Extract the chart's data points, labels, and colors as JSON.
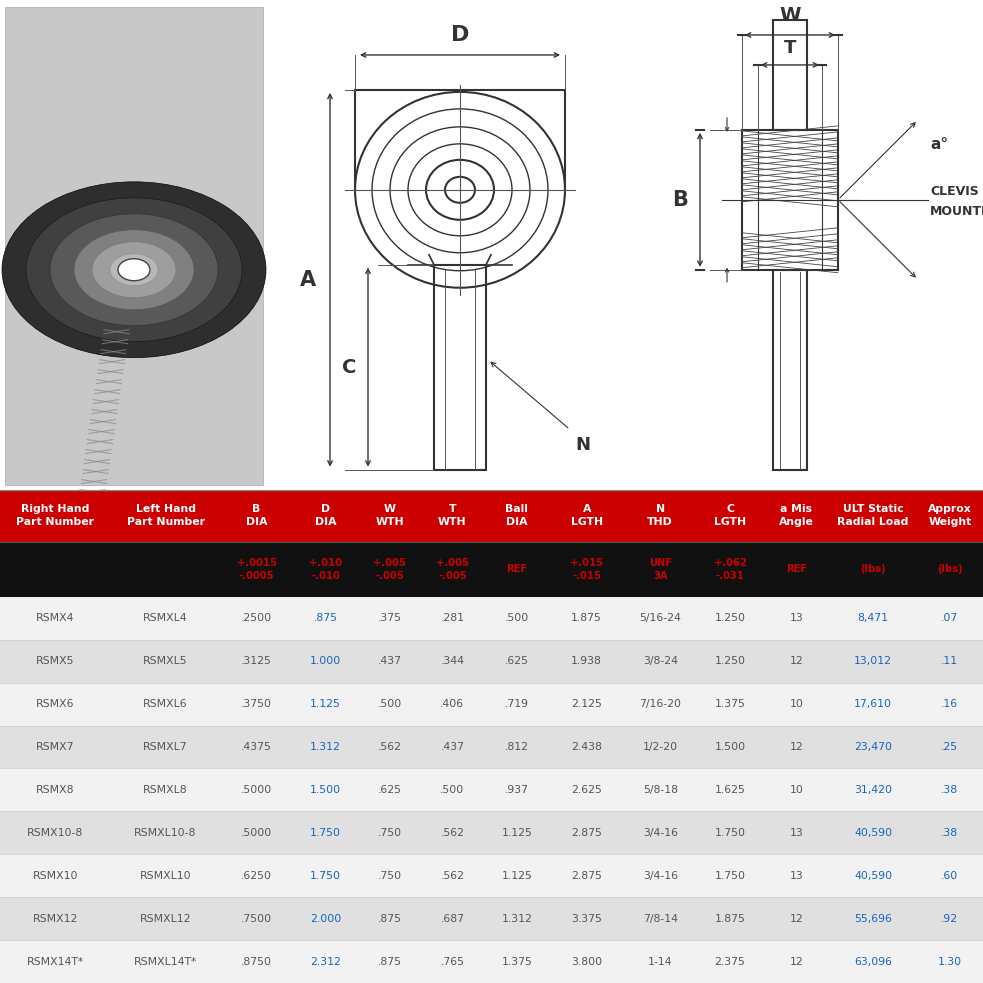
{
  "header_cols": [
    "Right Hand\nPart Number",
    "Left Hand\nPart Number",
    "B\nDIA",
    "D\nDIA",
    "W\nWTH",
    "T\nWTH",
    "Ball\nDIA",
    "A\nLGTH",
    "N\nTHD",
    "C\nLGTH",
    "a Mis\nAngle",
    "ULT Static\nRadial Load",
    "Approx\nWeight"
  ],
  "tolerance_row": [
    "",
    "",
    "+.0015\n-.0005",
    "+.010\n-.010",
    "+.005\n-.005",
    "+.005\n-.005",
    "REF",
    "+.015\n-.015",
    "UNF\n3A",
    "+.062\n-.031",
    "REF",
    "(lbs)",
    "(lbs)"
  ],
  "rows": [
    [
      "RSMX4",
      "RSMXL4",
      ".2500",
      ".875",
      ".375",
      ".281",
      ".500",
      "1.875",
      "5/16-24",
      "1.250",
      "13",
      "8,471",
      ".07"
    ],
    [
      "RSMX5",
      "RSMXL5",
      ".3125",
      "1.000",
      ".437",
      ".344",
      ".625",
      "1.938",
      "3/8-24",
      "1.250",
      "12",
      "13,012",
      ".11"
    ],
    [
      "RSMX6",
      "RSMXL6",
      ".3750",
      "1.125",
      ".500",
      ".406",
      ".719",
      "2.125",
      "7/16-20",
      "1.375",
      "10",
      "17,610",
      ".16"
    ],
    [
      "RSMX7",
      "RSMXL7",
      ".4375",
      "1.312",
      ".562",
      ".437",
      ".812",
      "2.438",
      "1/2-20",
      "1.500",
      "12",
      "23,470",
      ".25"
    ],
    [
      "RSMX8",
      "RSMXL8",
      ".5000",
      "1.500",
      ".625",
      ".500",
      ".937",
      "2.625",
      "5/8-18",
      "1.625",
      "10",
      "31,420",
      ".38"
    ],
    [
      "RSMX10-8",
      "RSMXL10-8",
      ".5000",
      "1.750",
      ".750",
      ".562",
      "1.125",
      "2.875",
      "3/4-16",
      "1.750",
      "13",
      "40,590",
      ".38"
    ],
    [
      "RSMX10",
      "RSMXL10",
      ".6250",
      "1.750",
      ".750",
      ".562",
      "1.125",
      "2.875",
      "3/4-16",
      "1.750",
      "13",
      "40,590",
      ".60"
    ],
    [
      "RSMX12",
      "RSMXL12",
      ".7500",
      "2.000",
      ".875",
      ".687",
      "1.312",
      "3.375",
      "7/8-14",
      "1.875",
      "12",
      "55,696",
      ".92"
    ],
    [
      "RSMX14T*",
      "RSMXL14T*",
      ".8750",
      "2.312",
      ".875",
      ".765",
      "1.375",
      "3.800",
      "1-14",
      "2.375",
      "12",
      "63,096",
      "1.30"
    ]
  ],
  "header_bg": "#cc0000",
  "tol_bg": "#111111",
  "tol_text_color": "#cc0000",
  "row_bg_odd": "#f2f2f2",
  "row_bg_even": "#e0e0e0",
  "row_text_color": "#555555",
  "d_col_color": "#1565c0",
  "border_color": "#cccccc",
  "col_widths": [
    1.2,
    1.2,
    0.78,
    0.72,
    0.68,
    0.68,
    0.72,
    0.8,
    0.8,
    0.72,
    0.72,
    0.95,
    0.72
  ]
}
